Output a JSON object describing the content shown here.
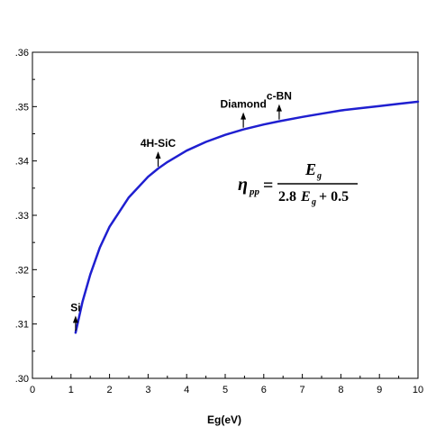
{
  "chart_data": {
    "type": "line",
    "xlabel": "Eg(eV)",
    "ylabel": "",
    "xlim": [
      0,
      10
    ],
    "ylim": [
      0.3,
      0.36
    ],
    "x_ticks": [
      "0",
      "1",
      "2",
      "3",
      "4",
      "5",
      "6",
      "7",
      "8",
      "9",
      "10"
    ],
    "y_ticks": [
      ".30",
      ".31",
      ".32",
      ".33",
      ".34",
      ".35",
      ".36"
    ],
    "grid": false,
    "series": [
      {
        "color": "#1f1fd0",
        "formula": "x / (2.8*x + 0.5)",
        "x": [
          1.12,
          1.3,
          1.5,
          1.75,
          2.0,
          2.5,
          3.0,
          3.26,
          3.5,
          4.0,
          4.5,
          5.0,
          5.47,
          6.0,
          6.4,
          7.0,
          7.5,
          8.0,
          8.5,
          9.0,
          9.5,
          10.0
        ],
        "y": [
          0.3084,
          0.3141,
          0.3191,
          0.3241,
          0.3279,
          0.3333,
          0.3371,
          0.3386,
          0.3398,
          0.3419,
          0.3435,
          0.3448,
          0.3458,
          0.3467,
          0.3473,
          0.3481,
          0.3487,
          0.3493,
          0.3497,
          0.3501,
          0.3505,
          0.3509
        ]
      }
    ],
    "annotations": [
      {
        "label": "Si",
        "x": 1.12,
        "y": 0.3084
      },
      {
        "label": "4H-SiC",
        "x": 3.26,
        "y": 0.3386
      },
      {
        "label": "Diamond",
        "x": 5.47,
        "y": 0.3458
      },
      {
        "label": "c-BN",
        "x": 6.4,
        "y": 0.3473
      }
    ],
    "equation": {
      "lhs_symbol": "η",
      "lhs_subscript": "pp",
      "equals": "=",
      "numerator": "E",
      "numerator_subscript": "g",
      "denominator_lead": "2.8",
      "denominator_symbol": "E",
      "denominator_subscript": "g",
      "denominator_tail": " + 0.5"
    }
  }
}
